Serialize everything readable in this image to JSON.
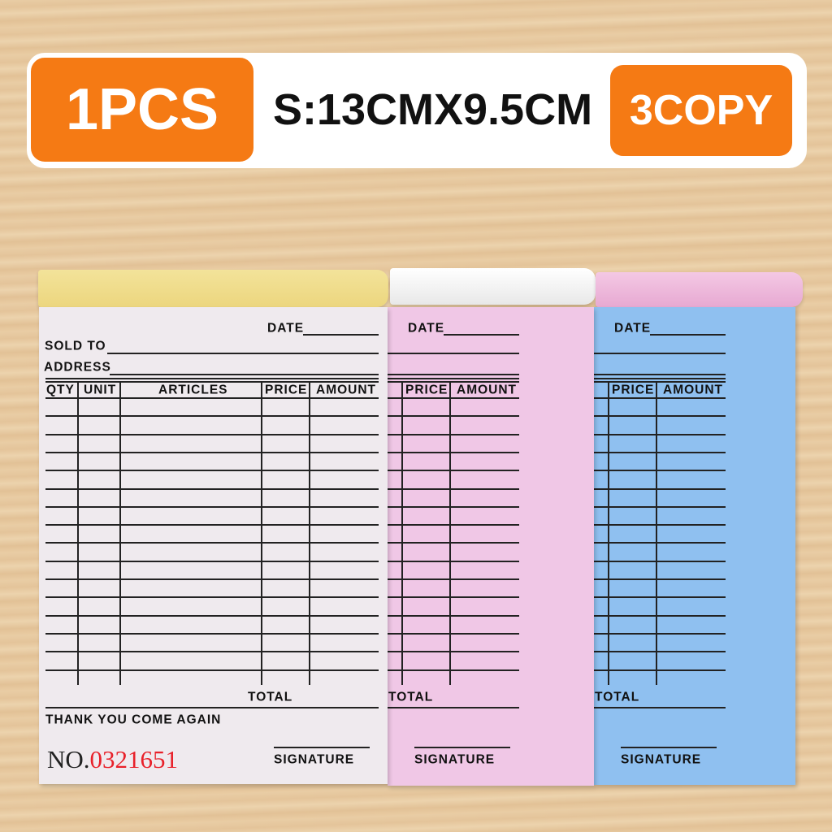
{
  "banner": {
    "quantity": "1PCS",
    "size": "S:13CMX9.5CM",
    "copies": "3COPY",
    "accent": "#f57a14"
  },
  "form": {
    "date": "DATE",
    "sold_to": "SOLD TO",
    "address": "ADDRESS",
    "columns": [
      "QTY",
      "UNIT",
      "ARTICLES",
      "PRICE",
      "AMOUNT"
    ],
    "total": "TOTAL",
    "thanks": "THANK YOU COME AGAIN",
    "no_label": "NO.",
    "number": "0321651",
    "signature": "SIGNATURE"
  },
  "sheets": [
    {
      "color": "#efeaee"
    },
    {
      "color": "#f0c7e6"
    },
    {
      "color": "#8fc0f0"
    }
  ]
}
